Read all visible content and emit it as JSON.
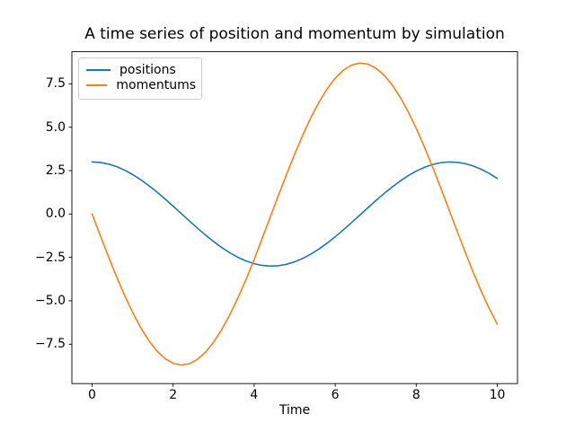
{
  "chart_data": {
    "type": "line",
    "title": "A time series of position and momentum by simulation",
    "xlabel": "Time",
    "ylabel": "",
    "grid": false,
    "legend_position": "upper left",
    "xlim": [
      -0.5,
      10.5
    ],
    "ylim": [
      -9.77,
      9.35
    ],
    "x_ticks": [
      0,
      2,
      4,
      6,
      8,
      10
    ],
    "x_tick_labels": [
      "0",
      "2",
      "4",
      "6",
      "8",
      "10"
    ],
    "y_ticks": [
      -7.5,
      -5.0,
      -2.5,
      0.0,
      2.5,
      5.0,
      7.5
    ],
    "y_tick_labels": [
      "−7.5",
      "−5.0",
      "−2.5",
      "0.0",
      "2.5",
      "5.0",
      "7.5"
    ],
    "x": [
      0,
      0.2,
      0.4,
      0.6,
      0.8,
      1,
      1.2,
      1.4,
      1.6,
      1.8,
      2,
      2.2,
      2.4,
      2.6,
      2.8,
      3,
      3.2,
      3.4,
      3.6,
      3.8,
      4,
      4.2,
      4.4,
      4.6,
      4.8,
      5,
      5.2,
      5.4,
      5.6,
      5.8,
      6,
      6.2,
      6.4,
      6.6,
      6.8,
      7,
      7.2,
      7.4,
      7.6,
      7.8,
      8,
      8.2,
      8.4,
      8.6,
      8.8,
      9,
      9.2,
      9.4,
      9.6,
      9.8,
      10
    ],
    "series": [
      {
        "name": "positions",
        "color": "#1f77b4",
        "values": [
          3.0,
          2.97,
          2.88,
          2.732,
          2.529,
          2.275,
          1.975,
          1.636,
          1.264,
          0.866,
          0.451,
          0.026,
          -0.398,
          -0.815,
          -1.214,
          -1.589,
          -1.933,
          -2.237,
          -2.496,
          -2.705,
          -2.86,
          -2.962,
          -2.999,
          -2.977,
          -2.894,
          -2.753,
          -2.557,
          -2.309,
          -2.015,
          -1.68,
          -1.312,
          -0.917,
          -0.502,
          -0.079,
          0.346,
          0.766,
          1.166,
          1.544,
          1.895,
          2.205,
          2.471,
          2.687,
          2.849,
          2.953,
          2.998,
          2.983,
          2.908,
          2.774,
          2.584,
          2.342,
          2.054
        ]
      },
      {
        "name": "momentums",
        "color": "#ff7f0e",
        "values": [
          0.0,
          -1.231,
          -2.438,
          -3.596,
          -4.681,
          -5.671,
          -6.548,
          -7.293,
          -7.891,
          -8.329,
          -8.602,
          -8.7,
          -8.623,
          -8.373,
          -7.955,
          -7.379,
          -6.655,
          -5.798,
          -4.827,
          -3.761,
          -2.627,
          -1.383,
          -0.153,
          1.08,
          2.291,
          3.455,
          4.55,
          5.555,
          6.445,
          7.209,
          7.824,
          8.284,
          8.577,
          8.697,
          8.642,
          8.412,
          8.015,
          7.459,
          6.746,
          5.9,
          4.935,
          3.872,
          2.73,
          1.534,
          0.306,
          -0.927,
          -2.142,
          -3.314,
          -4.419,
          -5.436,
          -6.342
        ]
      }
    ]
  }
}
